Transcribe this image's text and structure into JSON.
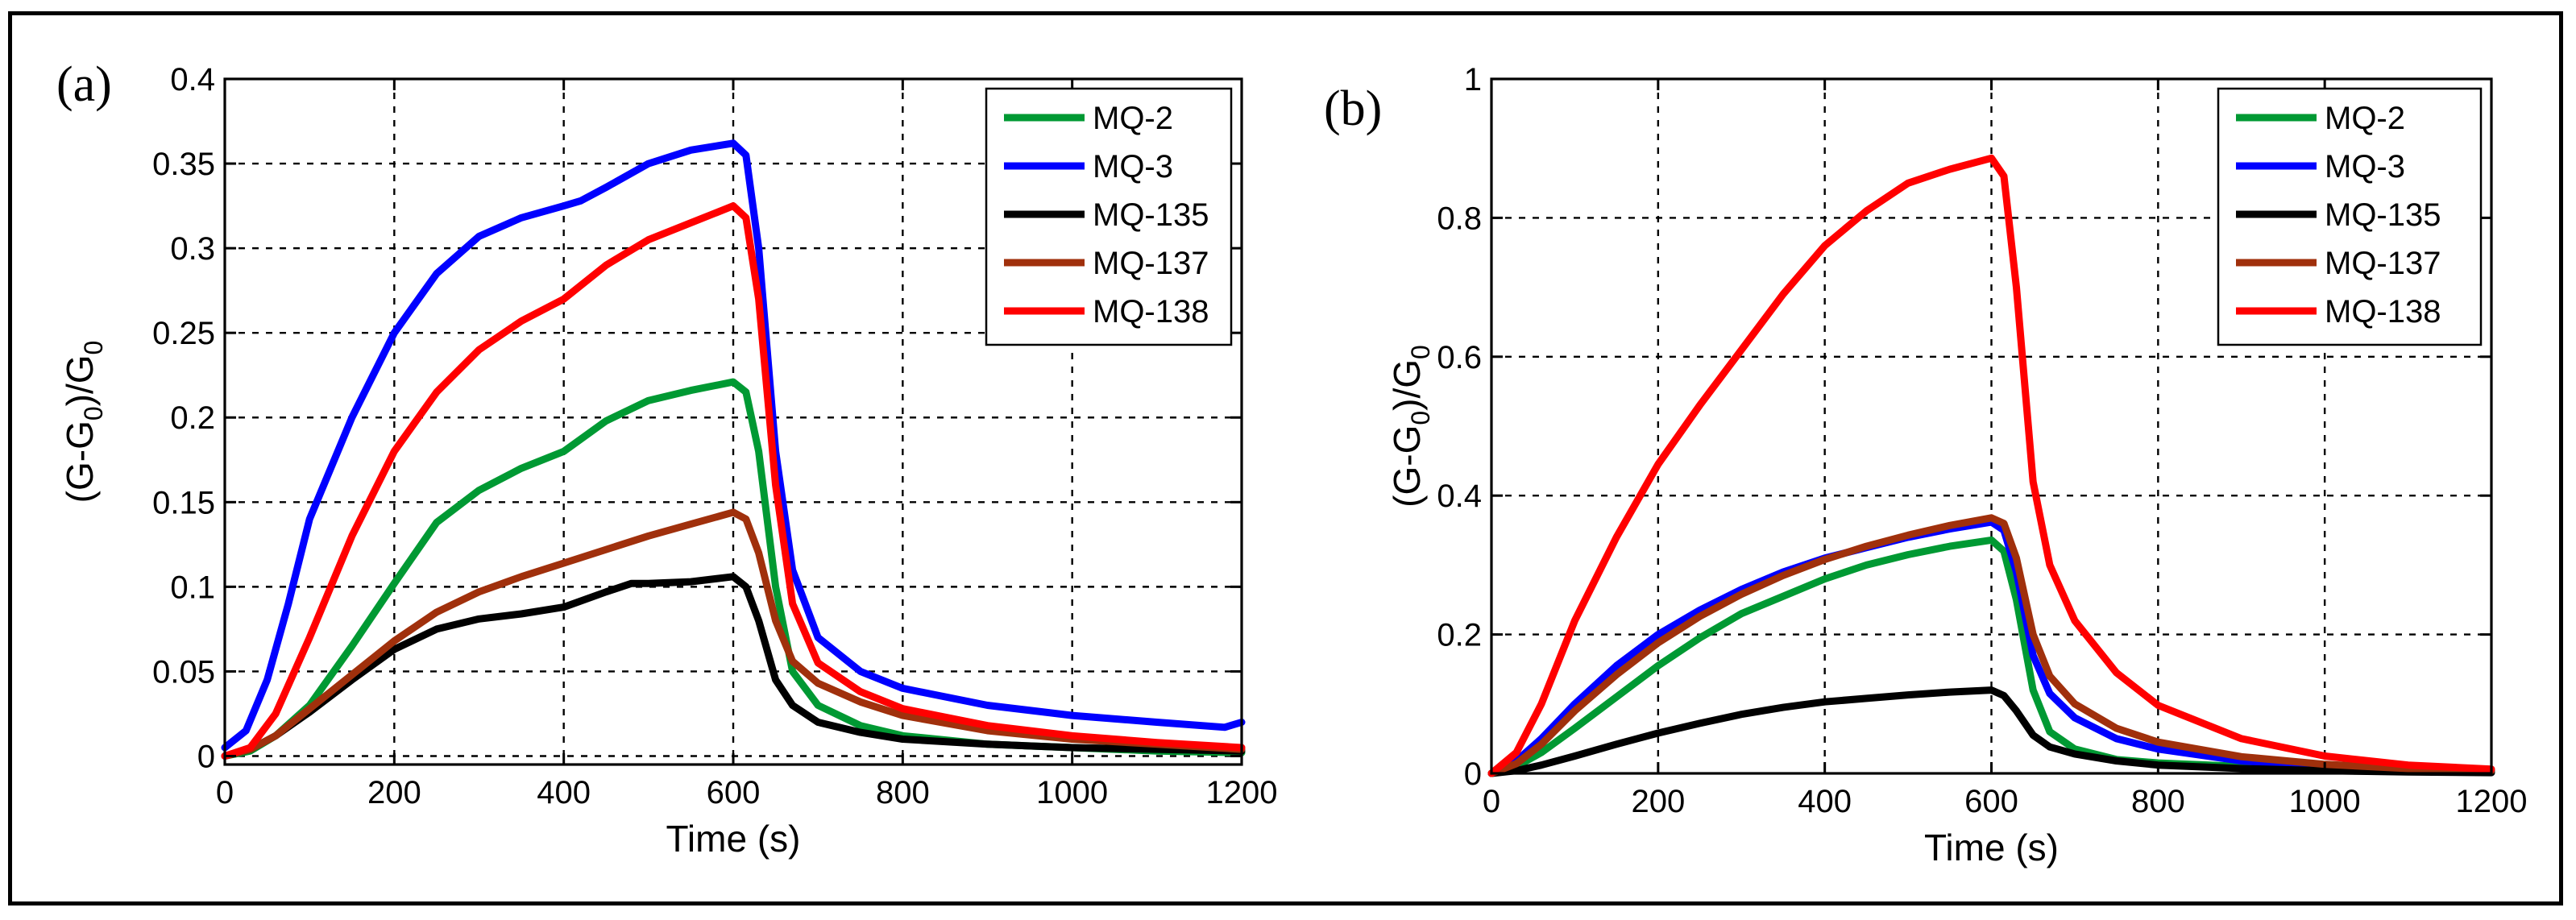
{
  "chart_data": [
    {
      "panel_label": "(a)",
      "type": "line",
      "xlabel": "Time (s)",
      "ylabel": "(G-G",
      "ylabel_sub": "0",
      "ylabel_mid": ")/G",
      "ylabel_sub2": "0",
      "xlim": [
        0,
        1200
      ],
      "ylim": [
        -0.005,
        0.4
      ],
      "xticks": [
        0,
        200,
        400,
        600,
        800,
        1000,
        1200
      ],
      "xtick_labels": [
        "0",
        "200",
        "400",
        "600",
        "800",
        "1000",
        "1200"
      ],
      "yticks": [
        0,
        0.05,
        0.1,
        0.15,
        0.2,
        0.25,
        0.3,
        0.35,
        0.4
      ],
      "ytick_labels": [
        "0",
        "0.05",
        "0.1",
        "0.15",
        "0.2",
        "0.25",
        "0.3",
        "0.35",
        "0.4"
      ],
      "grid": true,
      "legend_position": "top-right",
      "series": [
        {
          "name": "MQ-2",
          "color": "#009933",
          "x": [
            0,
            30,
            60,
            100,
            150,
            200,
            250,
            300,
            350,
            400,
            450,
            500,
            550,
            600,
            615,
            630,
            650,
            670,
            700,
            750,
            800,
            900,
            1000,
            1100,
            1200
          ],
          "y": [
            0.0,
            0.003,
            0.012,
            0.03,
            0.065,
            0.102,
            0.138,
            0.157,
            0.17,
            0.18,
            0.198,
            0.21,
            0.216,
            0.221,
            0.215,
            0.18,
            0.1,
            0.05,
            0.03,
            0.018,
            0.012,
            0.007,
            0.005,
            0.003,
            0.002
          ]
        },
        {
          "name": "MQ-3",
          "color": "#0000ff",
          "x": [
            0,
            25,
            50,
            75,
            100,
            150,
            200,
            250,
            300,
            350,
            400,
            420,
            450,
            500,
            550,
            600,
            615,
            630,
            650,
            670,
            700,
            750,
            800,
            900,
            1000,
            1100,
            1180,
            1200
          ],
          "y": [
            0.005,
            0.015,
            0.045,
            0.09,
            0.14,
            0.2,
            0.25,
            0.285,
            0.307,
            0.318,
            0.325,
            0.328,
            0.336,
            0.35,
            0.358,
            0.362,
            0.355,
            0.3,
            0.18,
            0.11,
            0.07,
            0.05,
            0.04,
            0.03,
            0.024,
            0.02,
            0.017,
            0.02
          ]
        },
        {
          "name": "MQ-135",
          "color": "#000000",
          "x": [
            0,
            30,
            60,
            100,
            150,
            200,
            250,
            300,
            350,
            400,
            450,
            480,
            500,
            550,
            600,
            615,
            630,
            650,
            670,
            700,
            750,
            800,
            900,
            1000,
            1100,
            1200
          ],
          "y": [
            0.0,
            0.004,
            0.012,
            0.026,
            0.045,
            0.063,
            0.075,
            0.081,
            0.084,
            0.088,
            0.097,
            0.102,
            0.102,
            0.103,
            0.106,
            0.1,
            0.08,
            0.045,
            0.03,
            0.02,
            0.014,
            0.01,
            0.007,
            0.005,
            0.004,
            0.003
          ]
        },
        {
          "name": "MQ-137",
          "color": "#a0300c",
          "x": [
            0,
            30,
            60,
            100,
            150,
            200,
            250,
            300,
            350,
            400,
            450,
            500,
            550,
            600,
            615,
            630,
            650,
            670,
            700,
            750,
            800,
            900,
            1000,
            1100,
            1200
          ],
          "y": [
            0.0,
            0.004,
            0.012,
            0.028,
            0.048,
            0.068,
            0.085,
            0.097,
            0.106,
            0.114,
            0.122,
            0.13,
            0.137,
            0.144,
            0.14,
            0.12,
            0.08,
            0.056,
            0.043,
            0.032,
            0.024,
            0.015,
            0.01,
            0.007,
            0.004
          ]
        },
        {
          "name": "MQ-138",
          "color": "#ff0000",
          "x": [
            0,
            30,
            60,
            100,
            150,
            200,
            250,
            300,
            350,
            400,
            450,
            500,
            550,
            600,
            615,
            630,
            650,
            670,
            700,
            750,
            800,
            900,
            1000,
            1100,
            1200
          ],
          "y": [
            0.0,
            0.005,
            0.025,
            0.07,
            0.13,
            0.18,
            0.215,
            0.24,
            0.257,
            0.27,
            0.29,
            0.305,
            0.315,
            0.325,
            0.318,
            0.27,
            0.16,
            0.09,
            0.055,
            0.038,
            0.028,
            0.018,
            0.012,
            0.008,
            0.005
          ]
        }
      ]
    },
    {
      "panel_label": "(b)",
      "type": "line",
      "xlabel": "Time (s)",
      "ylabel": "(G-G",
      "ylabel_sub": "0",
      "ylabel_mid": ")/G",
      "ylabel_sub2": "0",
      "xlim": [
        0,
        1200
      ],
      "ylim": [
        0,
        1
      ],
      "xticks": [
        0,
        200,
        400,
        600,
        800,
        1000,
        1200
      ],
      "xtick_labels": [
        "0",
        "200",
        "400",
        "600",
        "800",
        "1000",
        "1200"
      ],
      "yticks": [
        0,
        0.2,
        0.4,
        0.6,
        0.8,
        1
      ],
      "ytick_labels": [
        "0",
        "0.2",
        "0.4",
        "0.6",
        "0.8",
        "1"
      ],
      "grid": true,
      "legend_position": "top-right",
      "series": [
        {
          "name": "MQ-2",
          "color": "#009933",
          "x": [
            0,
            30,
            60,
            100,
            150,
            200,
            250,
            300,
            350,
            400,
            450,
            500,
            550,
            600,
            615,
            630,
            650,
            670,
            700,
            750,
            800,
            900,
            1000,
            1100,
            1200
          ],
          "y": [
            0.0,
            0.01,
            0.03,
            0.065,
            0.11,
            0.155,
            0.195,
            0.23,
            0.255,
            0.28,
            0.3,
            0.315,
            0.327,
            0.336,
            0.32,
            0.25,
            0.12,
            0.06,
            0.035,
            0.02,
            0.015,
            0.01,
            0.006,
            0.003,
            0.002
          ]
        },
        {
          "name": "MQ-3",
          "color": "#0000ff",
          "x": [
            0,
            30,
            60,
            100,
            150,
            200,
            250,
            300,
            350,
            400,
            450,
            500,
            550,
            600,
            615,
            630,
            650,
            670,
            700,
            750,
            800,
            900,
            1000,
            1100,
            1200
          ],
          "y": [
            0.0,
            0.018,
            0.05,
            0.1,
            0.155,
            0.2,
            0.235,
            0.265,
            0.29,
            0.31,
            0.325,
            0.34,
            0.352,
            0.362,
            0.35,
            0.29,
            0.17,
            0.115,
            0.08,
            0.05,
            0.035,
            0.018,
            0.01,
            0.005,
            0.003
          ]
        },
        {
          "name": "MQ-135",
          "color": "#000000",
          "x": [
            0,
            30,
            60,
            100,
            150,
            200,
            250,
            300,
            350,
            400,
            450,
            500,
            550,
            600,
            615,
            630,
            650,
            670,
            700,
            750,
            800,
            900,
            1000,
            1100,
            1200
          ],
          "y": [
            0.0,
            0.004,
            0.012,
            0.025,
            0.042,
            0.058,
            0.072,
            0.085,
            0.095,
            0.103,
            0.108,
            0.113,
            0.117,
            0.12,
            0.112,
            0.09,
            0.055,
            0.038,
            0.028,
            0.018,
            0.012,
            0.007,
            0.004,
            0.002,
            0.001
          ]
        },
        {
          "name": "MQ-137",
          "color": "#a0300c",
          "x": [
            0,
            30,
            60,
            100,
            150,
            200,
            250,
            300,
            350,
            400,
            450,
            500,
            550,
            600,
            615,
            630,
            650,
            670,
            700,
            750,
            800,
            900,
            1000,
            1100,
            1200
          ],
          "y": [
            0.0,
            0.014,
            0.042,
            0.09,
            0.142,
            0.188,
            0.226,
            0.258,
            0.285,
            0.308,
            0.327,
            0.343,
            0.357,
            0.368,
            0.36,
            0.31,
            0.2,
            0.14,
            0.1,
            0.065,
            0.045,
            0.024,
            0.013,
            0.007,
            0.004
          ]
        },
        {
          "name": "MQ-138",
          "color": "#ff0000",
          "x": [
            0,
            30,
            60,
            100,
            150,
            200,
            250,
            300,
            350,
            400,
            450,
            500,
            550,
            600,
            615,
            630,
            650,
            670,
            700,
            750,
            800,
            900,
            1000,
            1100,
            1200
          ],
          "y": [
            0.0,
            0.03,
            0.1,
            0.22,
            0.34,
            0.445,
            0.53,
            0.61,
            0.69,
            0.76,
            0.81,
            0.85,
            0.87,
            0.886,
            0.86,
            0.7,
            0.42,
            0.3,
            0.22,
            0.145,
            0.098,
            0.05,
            0.025,
            0.012,
            0.006
          ]
        }
      ]
    }
  ]
}
